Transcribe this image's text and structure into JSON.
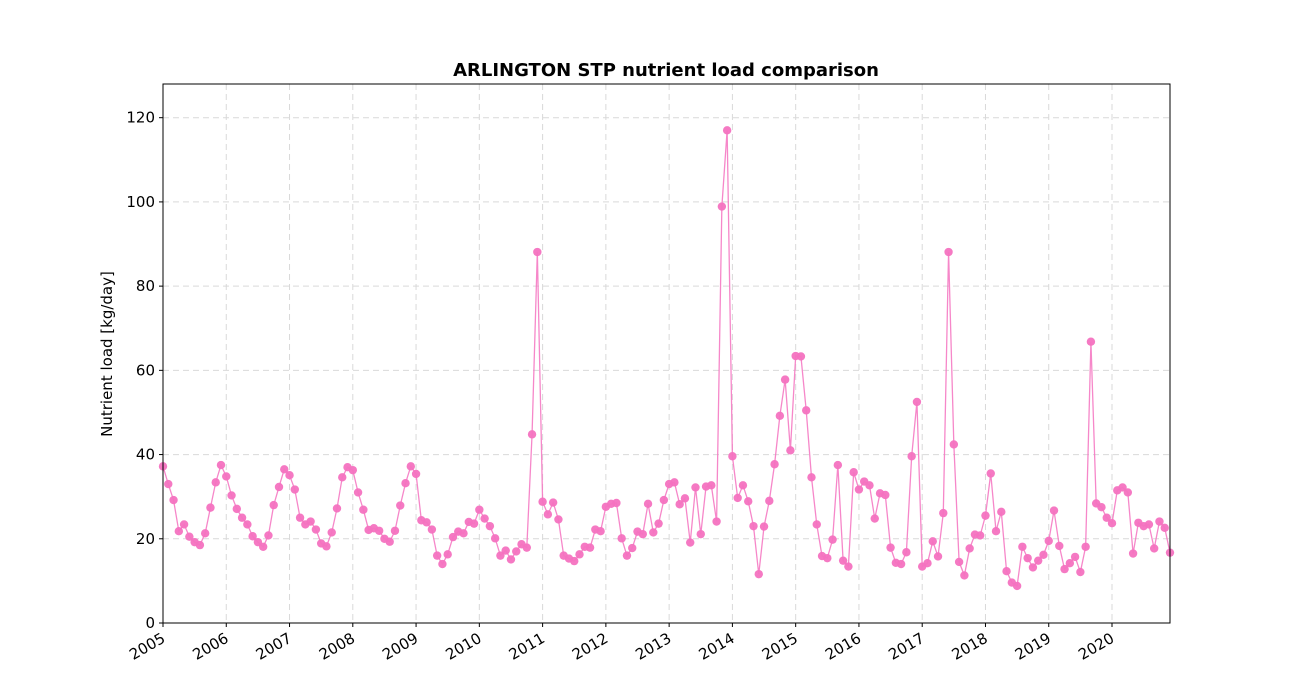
{
  "chart_data": {
    "type": "line",
    "title": "ARLINGTON STP nutrient load comparison",
    "xlabel": "",
    "ylabel": "Nutrient load [kg/day]",
    "xlim": [
      "2005-01",
      "2020-12"
    ],
    "ylim": [
      0,
      128
    ],
    "yticks": [
      0,
      20,
      40,
      60,
      80,
      100,
      120
    ],
    "xticks": [
      "2005",
      "2006",
      "2007",
      "2008",
      "2009",
      "2010",
      "2011",
      "2012",
      "2013",
      "2014",
      "2015",
      "2016",
      "2017",
      "2018",
      "2019",
      "2020"
    ],
    "grid": true,
    "marker": "circle",
    "color": "#f472c0",
    "series": [
      {
        "name": "",
        "x_start": "2005-01",
        "x_step": "1 month",
        "values": [
          37.2,
          33.0,
          29.2,
          21.8,
          23.4,
          20.5,
          19.2,
          18.5,
          21.3,
          27.4,
          33.4,
          37.5,
          34.8,
          30.3,
          27.1,
          25.0,
          23.4,
          20.6,
          19.2,
          18.1,
          20.8,
          28.0,
          32.3,
          36.5,
          35.1,
          31.7,
          25.0,
          23.4,
          24.1,
          22.2,
          18.9,
          18.2,
          21.5,
          27.2,
          34.6,
          37.0,
          36.3,
          31.0,
          26.9,
          22.1,
          22.5,
          21.9,
          20.0,
          19.3,
          21.9,
          27.9,
          33.2,
          37.2,
          35.4,
          24.4,
          23.9,
          22.2,
          16.0,
          14.0,
          16.3,
          20.4,
          21.7,
          21.3,
          24.0,
          23.6,
          26.9,
          24.8,
          23.0,
          20.1,
          16.0,
          17.2,
          15.1,
          17.0,
          18.7,
          17.9,
          44.8,
          88.1,
          28.8,
          25.8,
          28.6,
          24.6,
          16.0,
          15.3,
          14.7,
          16.3,
          18.1,
          17.9,
          22.2,
          21.8,
          27.6,
          28.3,
          28.5,
          20.1,
          16.0,
          17.8,
          21.7,
          21.1,
          28.3,
          21.5,
          23.6,
          29.2,
          33.0,
          33.4,
          28.2,
          29.6,
          19.1,
          32.2,
          21.1,
          32.4,
          32.7,
          24.1,
          98.9,
          117.0,
          39.6,
          29.7,
          32.7,
          28.9,
          23.0,
          11.6,
          22.9,
          29.0,
          37.7,
          49.2,
          57.8,
          41.0,
          63.4,
          63.3,
          50.5,
          34.6,
          23.4,
          15.9,
          15.4,
          19.8,
          37.5,
          14.8,
          13.4,
          35.8,
          31.7,
          33.6,
          32.7,
          24.8,
          30.8,
          30.4,
          17.9,
          14.3,
          14.0,
          16.8,
          39.6,
          52.5,
          13.4,
          14.2,
          19.4,
          15.8,
          26.1,
          88.1,
          42.4,
          14.5,
          11.3,
          17.7,
          21.0,
          20.8,
          25.5,
          35.5,
          21.8,
          26.4,
          12.3,
          9.6,
          8.8,
          18.1,
          15.4,
          13.2,
          14.8,
          16.2,
          19.5,
          26.7,
          18.3,
          12.8,
          14.2,
          15.7,
          12.1,
          18.1,
          66.8,
          28.4,
          27.5,
          25.0,
          23.7,
          31.5,
          32.2,
          31.0,
          16.5,
          23.8,
          23.0,
          23.4,
          17.7,
          24.1,
          22.6,
          16.7
        ]
      }
    ]
  }
}
